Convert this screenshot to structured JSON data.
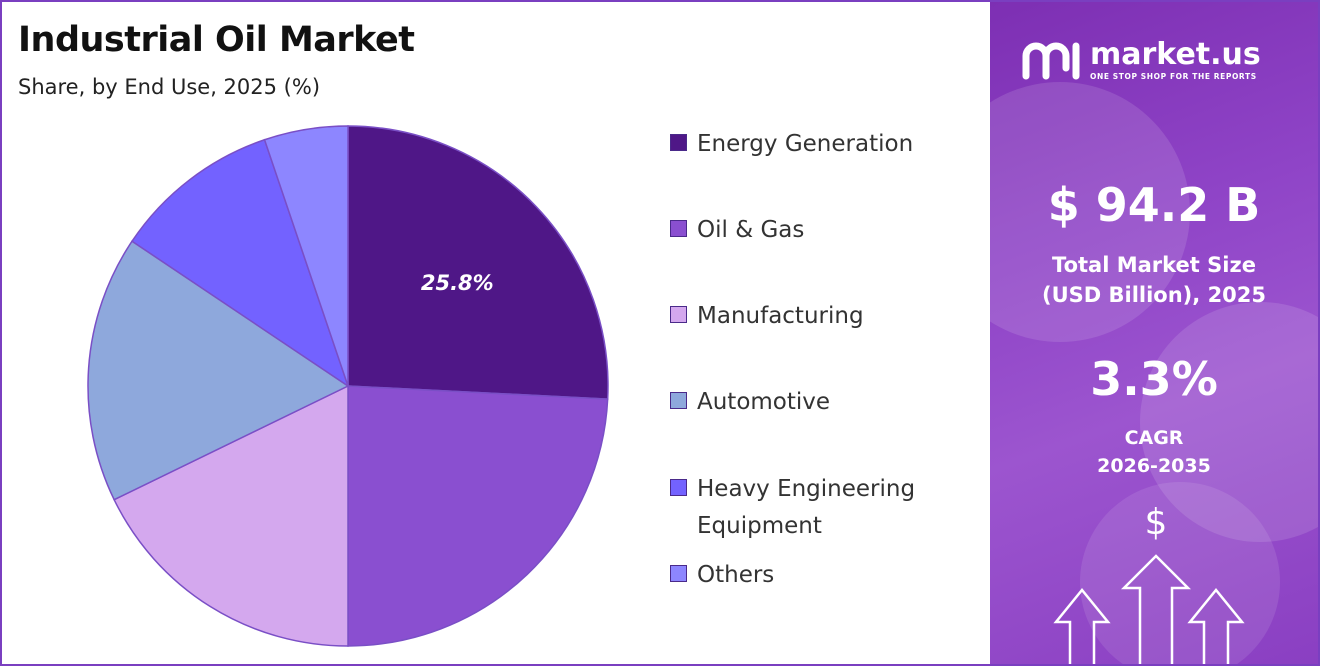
{
  "header": {
    "title": "Industrial Oil Market",
    "subtitle": "Share, by End Use, 2025 (%)"
  },
  "chart_data": {
    "type": "pie",
    "title": "Industrial Oil Market",
    "subtitle": "Share, by End Use, 2025 (%)",
    "start_angle_deg": 0,
    "direction": "clockwise",
    "slices": [
      {
        "label": "Energy Generation",
        "value": 25.8,
        "color": "#4f1787",
        "data_label": "25.8%"
      },
      {
        "label": "Oil & Gas",
        "value": 24.2,
        "color": "#8a4fd0",
        "data_label": ""
      },
      {
        "label": "Manufacturing",
        "value": 17.8,
        "color": "#d4a8ee",
        "data_label": ""
      },
      {
        "label": "Automotive",
        "value": 16.6,
        "color": "#8ea8dc",
        "data_label": ""
      },
      {
        "label": "Heavy Engineering Equipment",
        "value": 10.4,
        "color": "#7362ff",
        "data_label": ""
      },
      {
        "label": "Others",
        "value": 5.2,
        "color": "#8d86ff",
        "data_label": ""
      }
    ],
    "legend_position": "right"
  },
  "legend": {
    "items": [
      {
        "label": "Energy Generation",
        "color": "#4f1787"
      },
      {
        "label": "Oil & Gas",
        "color": "#8a4fd0"
      },
      {
        "label": "Manufacturing",
        "color": "#d4a8ee"
      },
      {
        "label": "Automotive",
        "color": "#8ea8dc"
      },
      {
        "label": "Heavy Engineering Equipment",
        "color": "#7362ff"
      },
      {
        "label": "Others",
        "color": "#8d86ff"
      }
    ]
  },
  "sidebar": {
    "brand_name": "market.us",
    "brand_tagline": "ONE STOP SHOP FOR THE REPORTS",
    "market_size": "$ 94.2 B",
    "market_size_label_line1": "Total Market Size",
    "market_size_label_line2": "(USD Billion), 2025",
    "cagr_value": "3.3%",
    "cagr_label_line1": "CAGR",
    "cagr_label_line2": "2026-2035",
    "currency_symbol": "$"
  },
  "colors": {
    "accent": "#7d2fb3",
    "border": "#7a3fc0"
  }
}
